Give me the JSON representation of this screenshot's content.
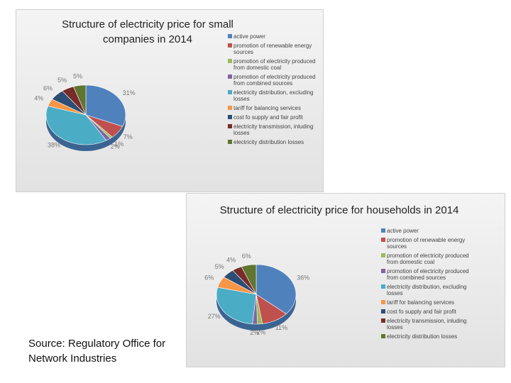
{
  "chart_data": [
    {
      "type": "pie",
      "title": "Structure of electricity price for small companies in 2014",
      "categories": [
        "active power",
        "promotion of renewable energy sources",
        "promotion of electricity produced from domestic coal",
        "promotion of electricity produced from combined sources",
        "electricity distribution, excluding losses",
        "tariff for balancing services",
        "cost fo supply and fair profit",
        "electricity transmission, inluding losses",
        "electricity distribution losses"
      ],
      "values": [
        31,
        7,
        1,
        2,
        38,
        4,
        6,
        5,
        5
      ],
      "value_labels": [
        "31%",
        "7%",
        "1%",
        "2%",
        "38%",
        "4%",
        "6%",
        "5%",
        "5%"
      ],
      "colors": [
        "#4f81bd",
        "#c0504d",
        "#9bbb59",
        "#8064a2",
        "#4bacc6",
        "#f79646",
        "#2c4d75",
        "#772c2a",
        "#5f7530"
      ]
    },
    {
      "type": "pie",
      "title": "Structure of electricity price for households in 2014",
      "categories": [
        "active power",
        "promotion of renewable energy sources",
        "promotion of electricity produced from domestic coal",
        "promotion of electricity produced from combined sources",
        "electricity distribution, excluding losses",
        "tariff for balancing services",
        "cost fo supply and fair profit",
        "electricity transmission, inluding losses",
        "electricity distribution losses"
      ],
      "values": [
        36,
        11,
        2,
        2,
        27,
        6,
        5,
        4,
        6
      ],
      "value_labels": [
        "36%",
        "11%",
        "2%",
        "2%",
        "27%",
        "6%",
        "5%",
        "4%",
        "6%"
      ],
      "colors": [
        "#4f81bd",
        "#c0504d",
        "#9bbb59",
        "#8064a2",
        "#4bacc6",
        "#f79646",
        "#2c4d75",
        "#772c2a",
        "#5f7530"
      ]
    }
  ],
  "source": "Source: Regulatory Office for Network Industries"
}
